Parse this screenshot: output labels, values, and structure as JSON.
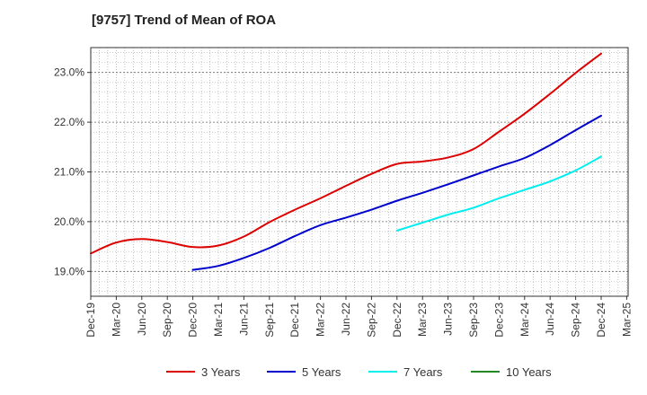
{
  "chart_data": {
    "type": "line",
    "title": "[9757]  Trend of Mean of ROA",
    "xlabel": "",
    "ylabel": "",
    "x_ticks": [
      "Dec-19",
      "Mar-20",
      "Jun-20",
      "Sep-20",
      "Dec-20",
      "Mar-21",
      "Jun-21",
      "Sep-21",
      "Dec-21",
      "Mar-22",
      "Jun-22",
      "Sep-22",
      "Dec-22",
      "Mar-23",
      "Jun-23",
      "Sep-23",
      "Dec-23",
      "Mar-24",
      "Jun-24",
      "Sep-24",
      "Dec-24",
      "Mar-25"
    ],
    "y_ticks": [
      19.0,
      20.0,
      21.0,
      22.0,
      23.0
    ],
    "y_tick_labels": [
      "19.0%",
      "20.0%",
      "21.0%",
      "22.0%",
      "23.0%"
    ],
    "ylim": [
      18.5,
      23.5
    ],
    "grid": "dotted, both axes",
    "legend_position": "bottom",
    "series": [
      {
        "name": "3 Years",
        "color": "#dd0000",
        "points": [
          [
            "Dec-19",
            19.36
          ],
          [
            "Mar-20",
            19.58
          ],
          [
            "Jun-20",
            19.65
          ],
          [
            "Sep-20",
            19.59
          ],
          [
            "Dec-20",
            19.49
          ],
          [
            "Mar-21",
            19.52
          ],
          [
            "Jun-21",
            19.7
          ],
          [
            "Sep-21",
            19.99
          ],
          [
            "Dec-21",
            20.24
          ],
          [
            "Mar-22",
            20.47
          ],
          [
            "Jun-22",
            20.72
          ],
          [
            "Sep-22",
            20.96
          ],
          [
            "Dec-22",
            21.16
          ],
          [
            "Mar-23",
            21.21
          ],
          [
            "Jun-23",
            21.29
          ],
          [
            "Sep-23",
            21.46
          ],
          [
            "Dec-23",
            21.81
          ],
          [
            "Mar-24",
            22.17
          ],
          [
            "Jun-24",
            22.57
          ],
          [
            "Sep-24",
            22.99
          ],
          [
            "Dec-24",
            23.38
          ]
        ]
      },
      {
        "name": "5 Years",
        "color": "#0000cc",
        "points": [
          [
            "Dec-20",
            19.03
          ],
          [
            "Mar-21",
            19.11
          ],
          [
            "Jun-21",
            19.27
          ],
          [
            "Sep-21",
            19.47
          ],
          [
            "Dec-21",
            19.71
          ],
          [
            "Mar-22",
            19.93
          ],
          [
            "Jun-22",
            20.08
          ],
          [
            "Sep-22",
            20.24
          ],
          [
            "Dec-22",
            20.42
          ],
          [
            "Mar-23",
            20.58
          ],
          [
            "Jun-23",
            20.75
          ],
          [
            "Sep-23",
            20.93
          ],
          [
            "Dec-23",
            21.11
          ],
          [
            "Mar-24",
            21.28
          ],
          [
            "Jun-24",
            21.54
          ],
          [
            "Sep-24",
            21.84
          ],
          [
            "Dec-24",
            22.13
          ]
        ]
      },
      {
        "name": "7 Years",
        "color": "#00eeee",
        "points": [
          [
            "Dec-22",
            19.82
          ],
          [
            "Mar-23",
            19.98
          ],
          [
            "Jun-23",
            20.14
          ],
          [
            "Sep-23",
            20.28
          ],
          [
            "Dec-23",
            20.47
          ],
          [
            "Mar-24",
            20.64
          ],
          [
            "Jun-24",
            20.81
          ],
          [
            "Sep-24",
            21.03
          ],
          [
            "Dec-24",
            21.31
          ]
        ]
      },
      {
        "name": "10 Years",
        "color": "#228822",
        "points": []
      }
    ]
  }
}
